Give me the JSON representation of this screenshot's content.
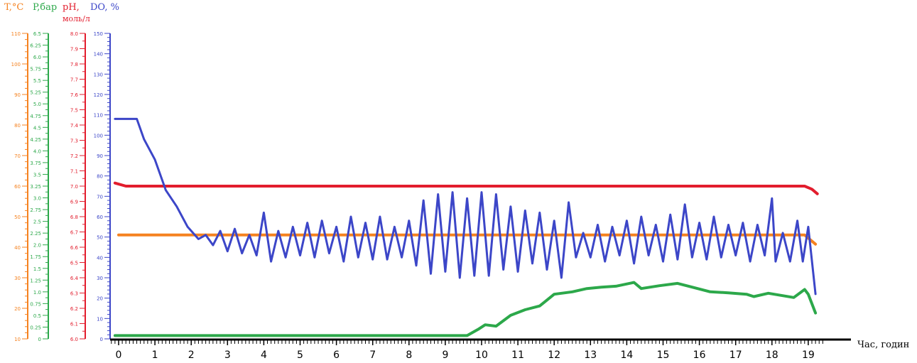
{
  "colors": {
    "temperature": "#f58220",
    "pressure": "#2ca84a",
    "ph": "#e21d2d",
    "dissolved_oxygen": "#3c46c8",
    "axis_x": "#000000"
  },
  "header": {
    "t_label": "T,°C",
    "p_label": "P,бар",
    "ph_label": "pH,",
    "ph_unit": "моль/л",
    "do_label": "DO, %"
  },
  "chart_data": {
    "type": "line",
    "xlabel": "Час, годин",
    "xlim": [
      -0.2,
      19.4
    ],
    "x_ticks": [
      0,
      1,
      2,
      3,
      4,
      5,
      6,
      7,
      8,
      9,
      10,
      11,
      12,
      13,
      14,
      15,
      16,
      17,
      18,
      19
    ],
    "axes": [
      {
        "id": "temperature",
        "label": "T,°C",
        "range": [
          10,
          110
        ],
        "tick_labels": [
          "10",
          "20",
          "30",
          "40",
          "50",
          "60",
          "70",
          "80",
          "90",
          "100",
          "110"
        ]
      },
      {
        "id": "pressure",
        "label": "P,бар",
        "range": [
          0,
          6.5
        ],
        "tick_labels": [
          "0",
          "0.25",
          "0.5",
          "0.75",
          "1.0",
          "1.25",
          "1.5",
          "1.75",
          "2.0",
          "2.25",
          "2.5",
          "2.75",
          "3.0",
          "3.25",
          "3.5",
          "3.75",
          "4.0",
          "4.25",
          "4.5",
          "4.75",
          "5.0",
          "5.25",
          "5.5",
          "5.75",
          "6.0",
          "6.25",
          "6.5"
        ]
      },
      {
        "id": "ph",
        "label": "pH, моль/л",
        "range": [
          6.0,
          8.0
        ],
        "tick_labels": [
          "6.0",
          "6.1",
          "6.2",
          "6.3",
          "6.4",
          "6.5",
          "6.6",
          "6.7",
          "6.8",
          "6.9",
          "7.0",
          "7.1",
          "7.2",
          "7.3",
          "7.4",
          "7.5",
          "7.6",
          "7.7",
          "7.8",
          "7.9",
          "8.0"
        ]
      },
      {
        "id": "dissolved_oxygen",
        "label": "DO, %",
        "range": [
          0,
          150
        ],
        "tick_labels": [
          "0",
          "10",
          "20",
          "30",
          "40",
          "50",
          "60",
          "70",
          "80",
          "90",
          "100",
          "110",
          "120",
          "130",
          "140",
          "150"
        ]
      }
    ],
    "series": [
      {
        "name": "T,°C",
        "axis": "temperature",
        "points": [
          [
            0,
            44
          ],
          [
            18.9,
            44
          ],
          [
            19.2,
            41
          ]
        ]
      },
      {
        "name": "P,бар",
        "axis": "pressure",
        "points": [
          [
            -0.1,
            0.07
          ],
          [
            9.6,
            0.07
          ],
          [
            9.9,
            0.2
          ],
          [
            10.1,
            0.3
          ],
          [
            10.4,
            0.27
          ],
          [
            10.8,
            0.5
          ],
          [
            11.2,
            0.62
          ],
          [
            11.6,
            0.7
          ],
          [
            12.0,
            0.95
          ],
          [
            12.5,
            1.0
          ],
          [
            12.9,
            1.07
          ],
          [
            13.3,
            1.1
          ],
          [
            13.7,
            1.12
          ],
          [
            14.2,
            1.2
          ],
          [
            14.4,
            1.07
          ],
          [
            14.9,
            1.13
          ],
          [
            15.4,
            1.18
          ],
          [
            15.8,
            1.1
          ],
          [
            16.3,
            1.0
          ],
          [
            16.8,
            0.98
          ],
          [
            17.3,
            0.95
          ],
          [
            17.5,
            0.9
          ],
          [
            17.9,
            0.97
          ],
          [
            18.6,
            0.88
          ],
          [
            18.9,
            1.05
          ],
          [
            19.0,
            0.95
          ],
          [
            19.2,
            0.55
          ]
        ]
      },
      {
        "name": "pH, моль/л",
        "axis": "ph",
        "points": [
          [
            -0.1,
            7.02
          ],
          [
            0.2,
            7.0
          ],
          [
            18.9,
            7.0
          ],
          [
            19.1,
            6.98
          ],
          [
            19.25,
            6.95
          ]
        ]
      },
      {
        "name": "DO, %",
        "axis": "dissolved_oxygen",
        "points": [
          [
            -0.1,
            108
          ],
          [
            0.5,
            108
          ],
          [
            0.7,
            98
          ],
          [
            1.0,
            88
          ],
          [
            1.3,
            73
          ],
          [
            1.6,
            65
          ],
          [
            1.9,
            55
          ],
          [
            2.2,
            49
          ],
          [
            2.4,
            51
          ],
          [
            2.6,
            46
          ],
          [
            2.8,
            53
          ],
          [
            3.0,
            43
          ],
          [
            3.2,
            54
          ],
          [
            3.4,
            42
          ],
          [
            3.6,
            51
          ],
          [
            3.8,
            41
          ],
          [
            4.0,
            62
          ],
          [
            4.2,
            38
          ],
          [
            4.4,
            53
          ],
          [
            4.6,
            40
          ],
          [
            4.8,
            55
          ],
          [
            5.0,
            41
          ],
          [
            5.2,
            57
          ],
          [
            5.4,
            40
          ],
          [
            5.6,
            58
          ],
          [
            5.8,
            42
          ],
          [
            6.0,
            55
          ],
          [
            6.2,
            38
          ],
          [
            6.4,
            60
          ],
          [
            6.6,
            40
          ],
          [
            6.8,
            57
          ],
          [
            7.0,
            39
          ],
          [
            7.2,
            60
          ],
          [
            7.4,
            39
          ],
          [
            7.6,
            55
          ],
          [
            7.8,
            40
          ],
          [
            8.0,
            58
          ],
          [
            8.2,
            36
          ],
          [
            8.4,
            68
          ],
          [
            8.6,
            32
          ],
          [
            8.8,
            71
          ],
          [
            9.0,
            33
          ],
          [
            9.2,
            72
          ],
          [
            9.4,
            30
          ],
          [
            9.6,
            69
          ],
          [
            9.8,
            31
          ],
          [
            10.0,
            72
          ],
          [
            10.2,
            31
          ],
          [
            10.4,
            71
          ],
          [
            10.6,
            34
          ],
          [
            10.8,
            65
          ],
          [
            11.0,
            33
          ],
          [
            11.2,
            63
          ],
          [
            11.4,
            37
          ],
          [
            11.6,
            62
          ],
          [
            11.8,
            34
          ],
          [
            12.0,
            58
          ],
          [
            12.2,
            30
          ],
          [
            12.4,
            67
          ],
          [
            12.6,
            40
          ],
          [
            12.8,
            52
          ],
          [
            13.0,
            40
          ],
          [
            13.2,
            56
          ],
          [
            13.4,
            38
          ],
          [
            13.6,
            55
          ],
          [
            13.8,
            41
          ],
          [
            14.0,
            58
          ],
          [
            14.2,
            37
          ],
          [
            14.4,
            60
          ],
          [
            14.6,
            41
          ],
          [
            14.8,
            56
          ],
          [
            15.0,
            38
          ],
          [
            15.2,
            61
          ],
          [
            15.4,
            39
          ],
          [
            15.6,
            66
          ],
          [
            15.8,
            40
          ],
          [
            16.0,
            57
          ],
          [
            16.2,
            39
          ],
          [
            16.4,
            60
          ],
          [
            16.6,
            40
          ],
          [
            16.8,
            56
          ],
          [
            17.0,
            41
          ],
          [
            17.2,
            57
          ],
          [
            17.4,
            38
          ],
          [
            17.6,
            56
          ],
          [
            17.8,
            41
          ],
          [
            18.0,
            69
          ],
          [
            18.1,
            38
          ],
          [
            18.3,
            52
          ],
          [
            18.5,
            38
          ],
          [
            18.7,
            58
          ],
          [
            18.85,
            38
          ],
          [
            19.0,
            55
          ],
          [
            19.2,
            22
          ]
        ]
      }
    ]
  }
}
